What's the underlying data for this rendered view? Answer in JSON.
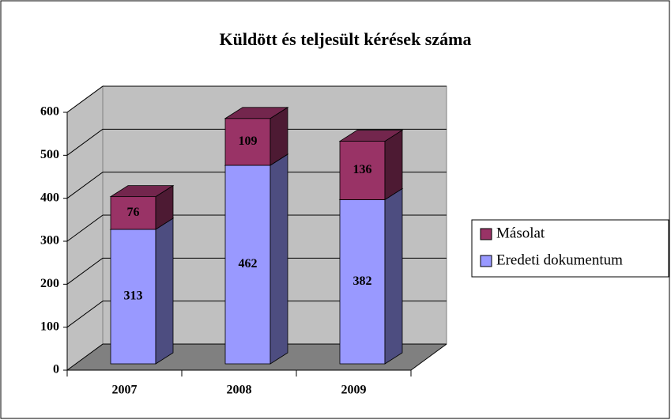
{
  "chart_data": {
    "type": "bar",
    "stacked": true,
    "title": "Küldött és teljesült kérések száma",
    "categories": [
      "2007",
      "2008",
      "2009"
    ],
    "series": [
      {
        "name": "Eredeti dokumentum",
        "color": "#9999ff",
        "values": [
          313,
          462,
          382
        ]
      },
      {
        "name": "Másolat",
        "color": "#993366",
        "values": [
          76,
          109,
          136
        ]
      }
    ],
    "ylim": [
      0,
      600
    ],
    "yticks": [
      0,
      100,
      200,
      300,
      400,
      500,
      600
    ],
    "grid": true,
    "legend": "right"
  }
}
